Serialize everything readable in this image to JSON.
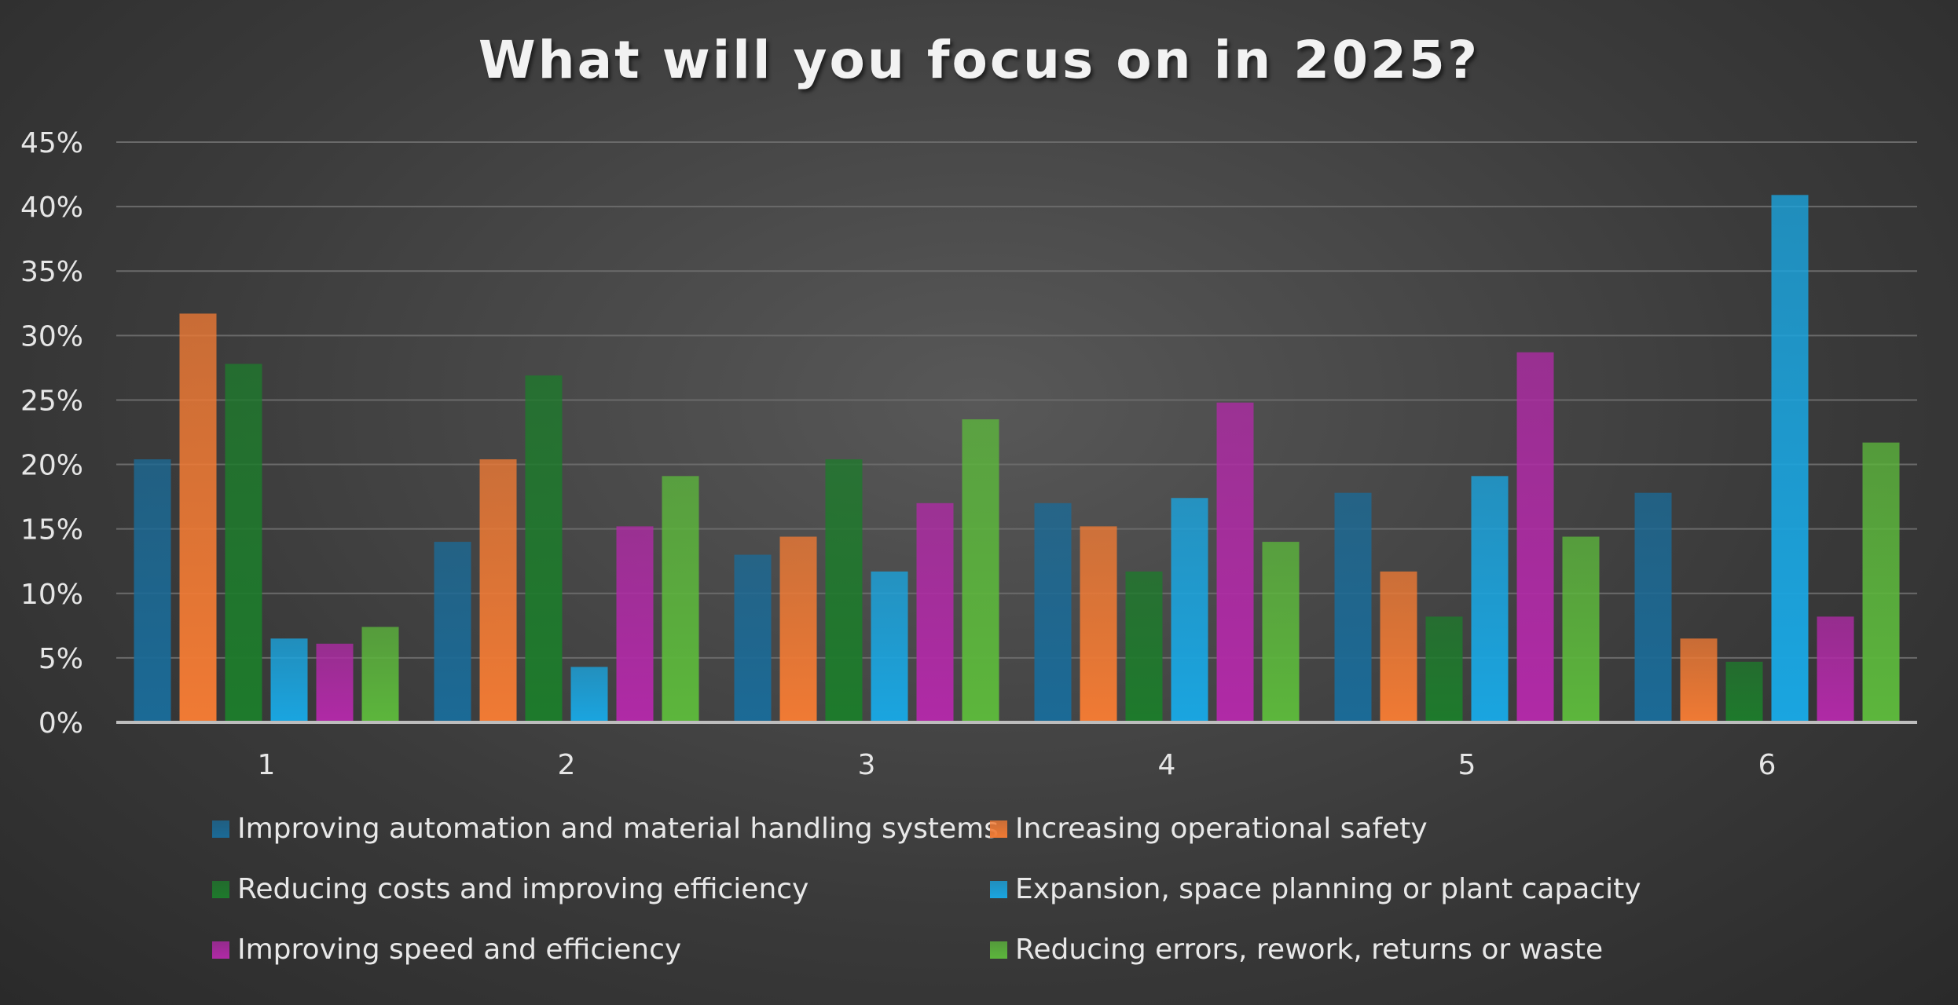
{
  "chart_data": {
    "type": "bar",
    "title": "What will you focus on in 2025?",
    "xlabel": "",
    "ylabel": "",
    "categories": [
      "1",
      "2",
      "3",
      "4",
      "5",
      "6"
    ],
    "ylim": [
      0,
      45
    ],
    "yticks": [
      "0%",
      "5%",
      "10%",
      "15%",
      "20%",
      "25%",
      "30%",
      "35%",
      "40%",
      "45%"
    ],
    "grid": true,
    "legend_position": "bottom",
    "series": [
      {
        "name": "Improving automation and material handling systems",
        "color": "#1b6a96",
        "values": [
          20.4,
          14,
          13,
          17,
          17.8,
          17.8
        ]
      },
      {
        "name": "Increasing operational safety",
        "color": "#f07a34",
        "values": [
          31.7,
          20.4,
          14.4,
          15.2,
          11.7,
          6.5
        ]
      },
      {
        "name": "Reducing costs and improving efficiency",
        "color": "#1e7a2c",
        "values": [
          27.8,
          26.9,
          20.4,
          11.7,
          8.2,
          4.7
        ]
      },
      {
        "name": "Expansion, space planning or plant capacity",
        "color": "#1aa5e0",
        "values": [
          6.5,
          4.3,
          11.7,
          17.4,
          19.1,
          40.9
        ]
      },
      {
        "name": "Improving speed and efficiency",
        "color": "#b02aa6",
        "values": [
          6.1,
          15.2,
          17,
          24.8,
          28.7,
          8.2
        ]
      },
      {
        "name": "Reducing errors, rework, returns or waste",
        "color": "#5cb63c",
        "values": [
          7.4,
          19.1,
          23.5,
          14,
          14.4,
          21.7
        ]
      }
    ]
  }
}
